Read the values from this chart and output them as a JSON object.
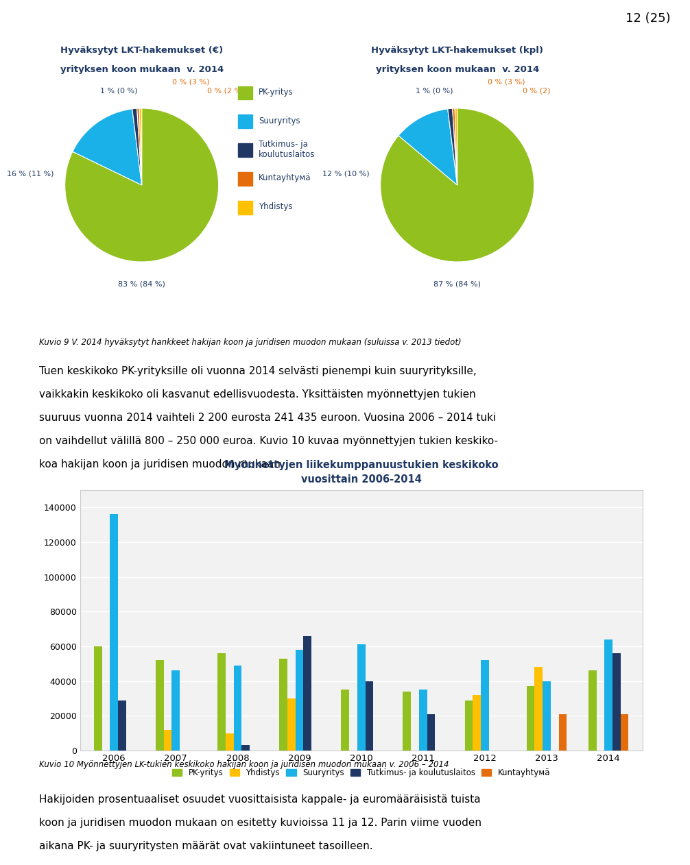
{
  "page_number": "12 (25)",
  "pie1_title_line1": "Hyväksytyt LKT-hakemukset (€)",
  "pie1_title_line2": "yrityksen koon mukaan  v. 2014",
  "pie2_title_line1": "Hyväksytyt LKT-hakemukset (kpl)",
  "pie2_title_line2": "yrityksen koon mukaan  v. 2014",
  "pie_colors": [
    "#92c01f",
    "#1ab0e8",
    "#1f3864",
    "#e46c0a",
    "#ffc000"
  ],
  "pie1_values": [
    83,
    16,
    1,
    0.5,
    0.5
  ],
  "pie2_values": [
    87,
    12,
    1,
    0.5,
    0.5
  ],
  "legend_labels": [
    "PK-yritys",
    "Suuryritys",
    "Tutkimus- ja\nkoulutuslaitos",
    "Kuntayhtyмä",
    "Yhdistys"
  ],
  "pie1_label_bottom": "83 % (84 %)",
  "pie1_label_left": "16 % (11 %)",
  "pie1_label_topleft": "1 % (0 %)",
  "pie1_label_topmid": "0 % (3 %)",
  "pie1_label_topright": "0 % (2 %)",
  "pie2_label_bottom": "87 % (84 %)",
  "pie2_label_left": "12 % (10 %)",
  "pie2_label_topleft": "1 % (0 %)",
  "pie2_label_topmid": "0 % (3 %)",
  "pie2_label_topright": "0 % (2)",
  "caption1": "Kuvio 9 V. 2014 hyväksytyt hankkeet hakijan koon ja juridisen muodon mukaan (suluissa v. 2013 tiedot)",
  "body_text1_lines": [
    "Tuen keskikoko PK-yrityksille oli vuonna 2014 selvästi pienempi kuin suuryrityksille,",
    "vaikkakin keskikoko oli kasvanut edellisvuodesta. Yksittäisten myönnettyjen tukien",
    "suuruus vuonna 2014 vaihteli 2 200 eurosta 241 435 euroon. Vuosina 2006 – 2014 tuki",
    "on vaihdellut välillä 800 – 250 000 euroa. Kuvio 10 kuvaa myönnettyjen tukien keskiko-",
    "koa hakijan koon ja juridisen muodon mukaan."
  ],
  "bar_title_line1": "Myönnettyjen liikekumppanuustukien keskikoko",
  "bar_title_line2": "vuosittain 2006-2014",
  "bar_years": [
    2006,
    2007,
    2008,
    2009,
    2010,
    2011,
    2012,
    2013,
    2014
  ],
  "bar_categories": [
    "PK-yritys",
    "Yhdistys",
    "Suuryritys",
    "Tutkimus- ja koulutuslaitos",
    "Kuntayhtyмä"
  ],
  "bar_colors": [
    "#92c01f",
    "#ffc000",
    "#1ab0e8",
    "#1f3864",
    "#e46c0a"
  ],
  "bar_data": {
    "PK-yritys": [
      60000,
      52000,
      56000,
      53000,
      35000,
      34000,
      29000,
      37000,
      46000
    ],
    "Yhdistys": [
      0,
      12000,
      10000,
      30000,
      0,
      0,
      32000,
      48000,
      0
    ],
    "Suuryritys": [
      136000,
      46000,
      49000,
      58000,
      61000,
      35000,
      52000,
      40000,
      64000
    ],
    "Tutkimus- ja koulutuslaitos": [
      29000,
      0,
      3000,
      66000,
      40000,
      21000,
      0,
      0,
      56000
    ],
    "Kuntayhtyмä": [
      0,
      0,
      0,
      0,
      0,
      0,
      0,
      21000,
      21000
    ]
  },
  "bar_ylim": [
    0,
    150000
  ],
  "bar_yticks": [
    0,
    20000,
    40000,
    60000,
    80000,
    100000,
    120000,
    140000
  ],
  "caption2": "Kuvio 10 Myönnettyjen LK-tukien keskikoko hakijan koon ja juridisen muodon mukaan v. 2006 – 2014",
  "body_text2_lines": [
    "Hakijoiden prosentuaaliset osuudet vuosittaisista kappale- ja euromääräisistä tuista",
    "koon ja juridisen muodon mukaan on esitetty kuvioissa 11 ja 12. Parin viime vuoden",
    "aikana PK- ja suuryritysten määrät ovat vakiintuneet tasoilleen."
  ],
  "bg_color": "#ffffff",
  "dark_blue": "#1f3864",
  "orange": "#e46c0a",
  "body_color": "#000000"
}
